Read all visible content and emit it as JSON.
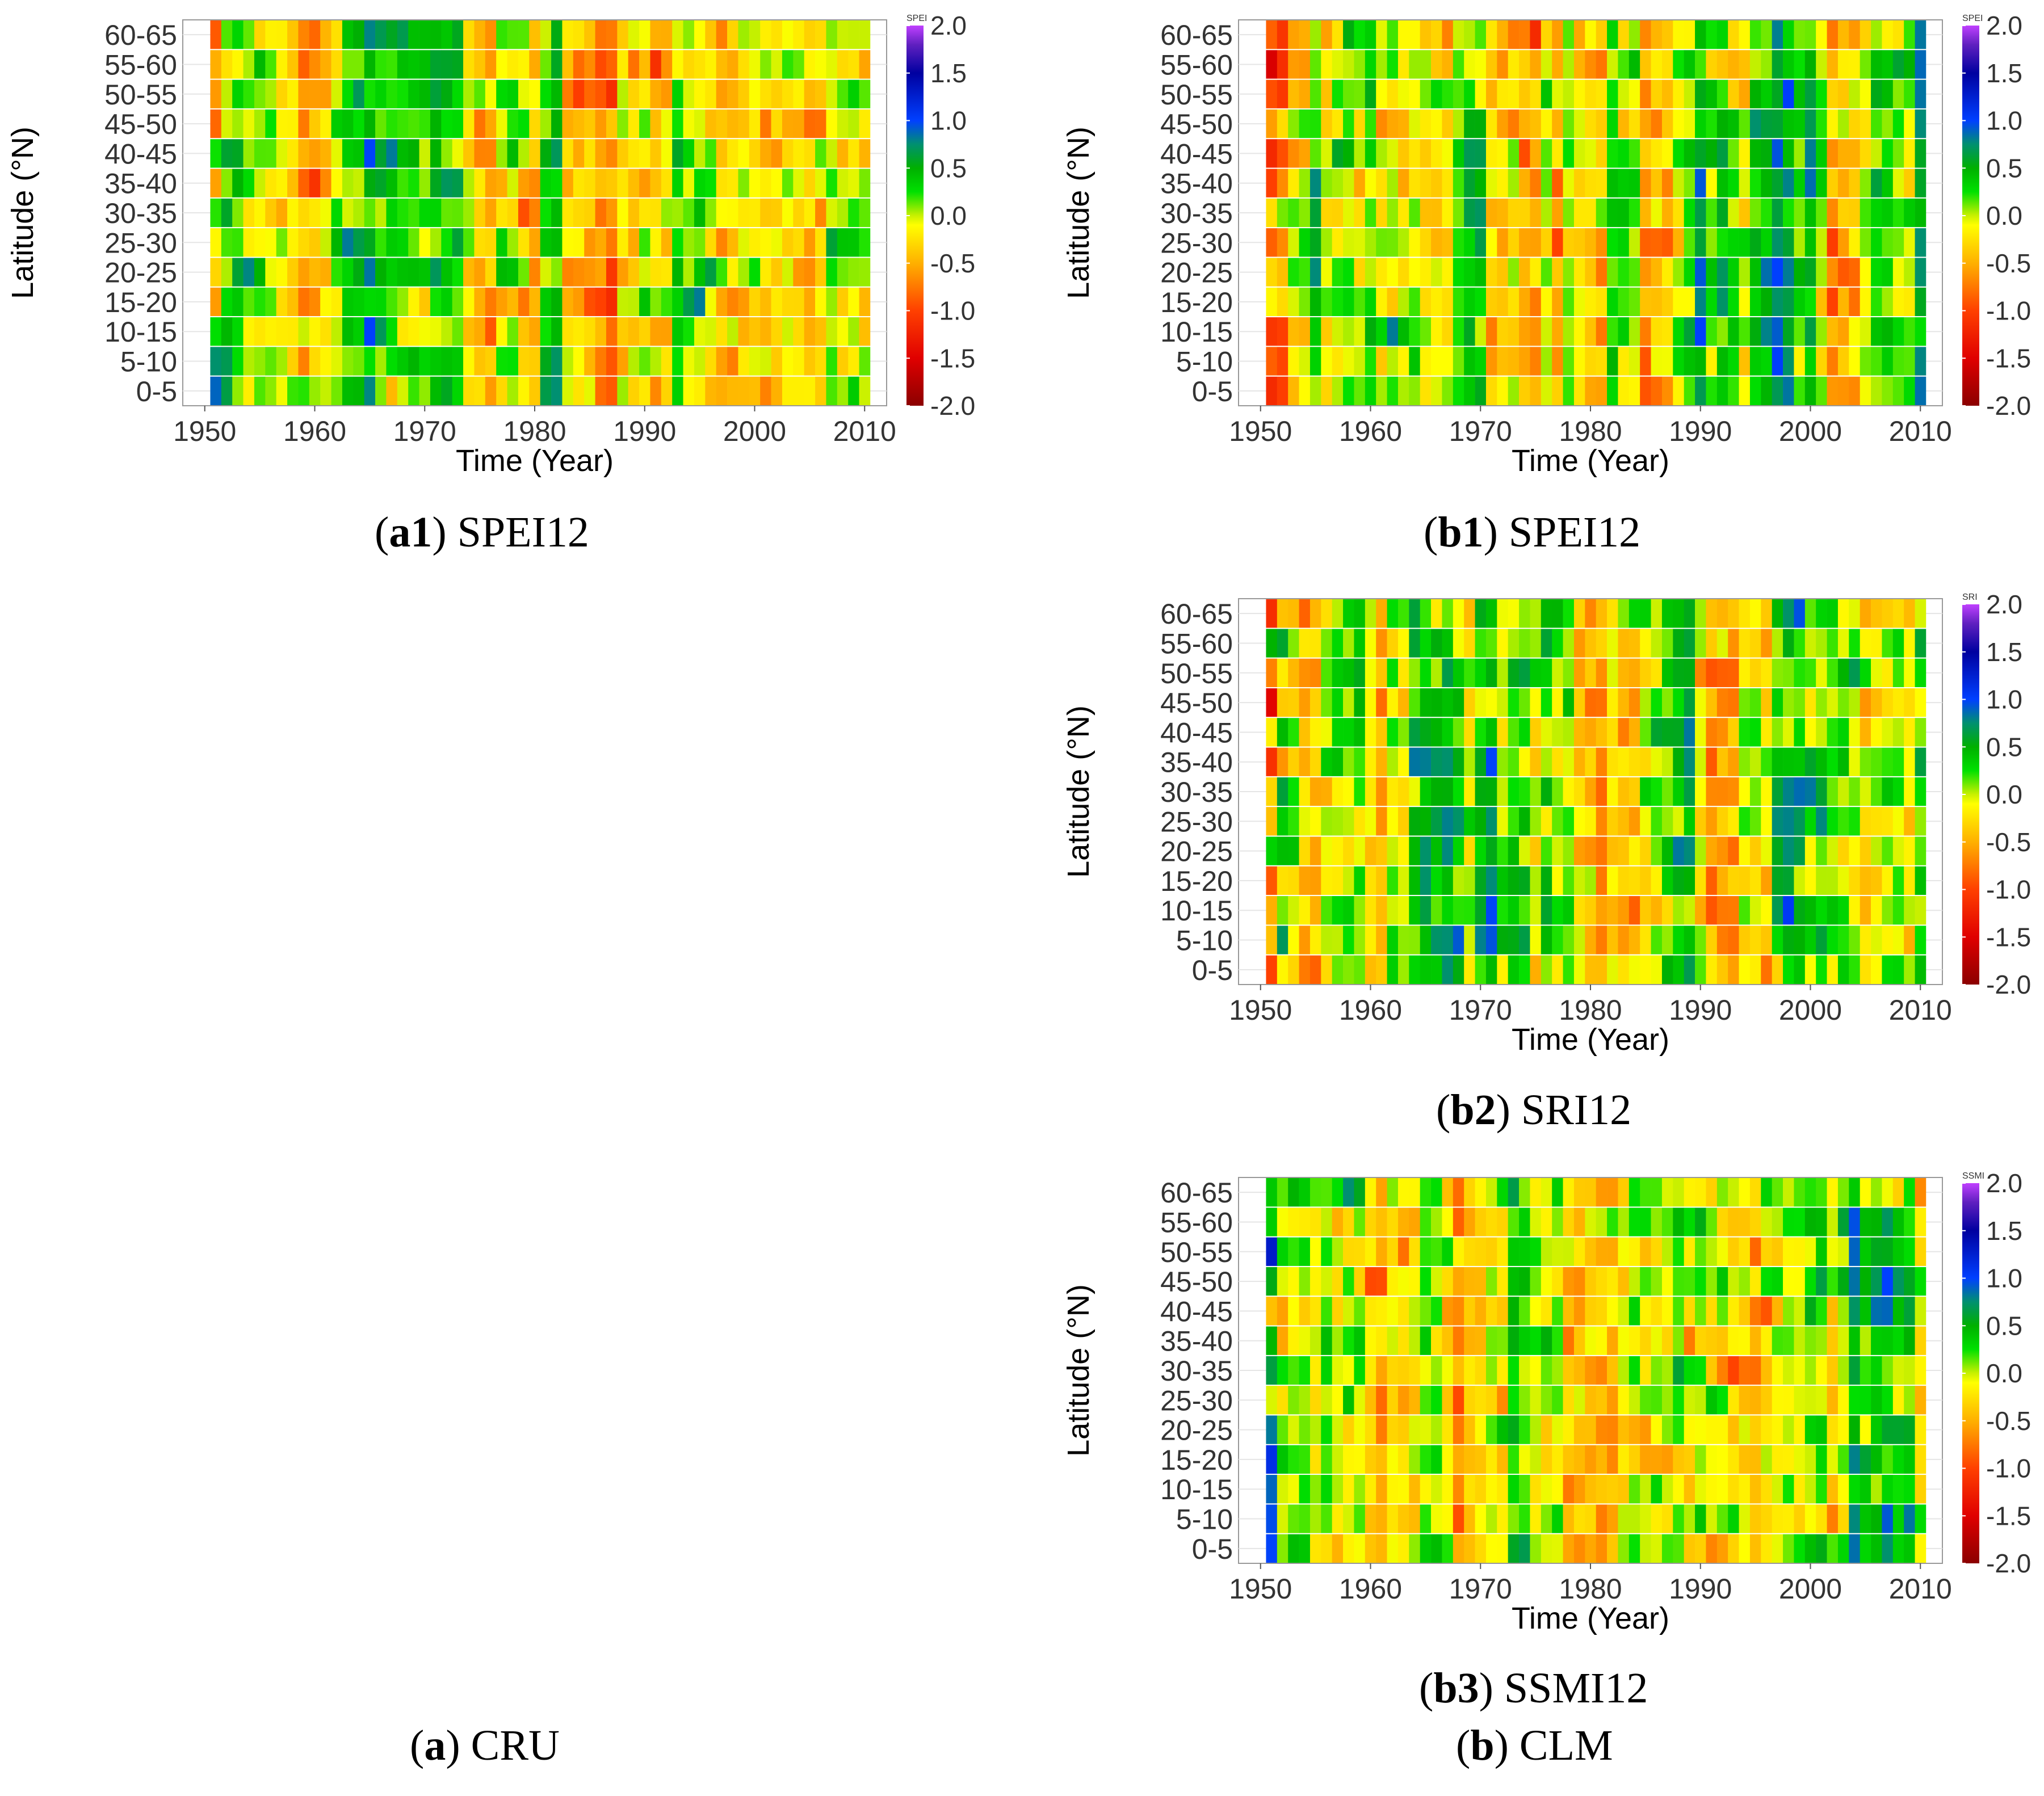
{
  "panels": [
    {
      "key": "a1",
      "title": "(a1) SPEI12",
      "caption": {
        "open": "(",
        "bold": "a1",
        "rest": ") SPEI12"
      },
      "legend_title": "SPEI"
    },
    {
      "key": "b1",
      "title": "(b1) SPEI12",
      "caption": {
        "open": "(",
        "bold": "b1",
        "rest": ") SPEI12"
      },
      "legend_title": "SPEI"
    },
    {
      "key": "b2",
      "title": "(b2) SRI12",
      "caption": {
        "open": "(",
        "bold": "b2",
        "rest": ") SRI12"
      },
      "legend_title": "SRI"
    },
    {
      "key": "b3",
      "title": "(b3) SSMI12",
      "caption": {
        "open": "(",
        "bold": "b3",
        "rest": ") SSMI12"
      },
      "legend_title": "SSMI"
    }
  ],
  "column_captions": {
    "a": {
      "open": "(",
      "bold": "a",
      "rest": ") CRU"
    },
    "b": {
      "open": "(",
      "bold": "b",
      "rest": ") CLM"
    }
  },
  "chart_data": {
    "type": "heatmap",
    "xlabel": "Time (Year)",
    "ylabel": "Latitude (°N)",
    "x_ticks": [
      1950,
      1960,
      1970,
      1980,
      1990,
      2000,
      2010
    ],
    "xlim": [
      1948,
      2012
    ],
    "year_range": [
      1951,
      2010
    ],
    "y_categories": [
      "0-5",
      "5-10",
      "10-15",
      "15-20",
      "20-25",
      "25-30",
      "30-35",
      "35-40",
      "40-45",
      "45-50",
      "50-55",
      "55-60",
      "60-65"
    ],
    "value_range": [
      -2.0,
      2.0
    ],
    "colorbar_ticks": [
      "2.0",
      "1.5",
      "1.0",
      "0.5",
      "0.0",
      "-0.5",
      "-1.0",
      "-1.5",
      "-2.0"
    ],
    "colorscale": [
      {
        "v": -2.0,
        "color": "#8b0000"
      },
      {
        "v": -1.5,
        "color": "#e00000"
      },
      {
        "v": -1.0,
        "color": "#ff4000"
      },
      {
        "v": -0.5,
        "color": "#ffb000"
      },
      {
        "v": -0.1,
        "color": "#ffff00"
      },
      {
        "v": 0.0,
        "color": "#c8f000"
      },
      {
        "v": 0.25,
        "color": "#00e000"
      },
      {
        "v": 0.5,
        "color": "#00b000"
      },
      {
        "v": 0.75,
        "color": "#009070"
      },
      {
        "v": 1.0,
        "color": "#0040ff"
      },
      {
        "v": 1.5,
        "color": "#0000a0"
      },
      {
        "v": 1.8,
        "color": "#6020c0"
      },
      {
        "v": 2.0,
        "color": "#c040ff"
      }
    ],
    "series": [
      {
        "name": "CRU SPEI12",
        "seed": 11,
        "note": "Cell values approximated from the image; not individually legible."
      },
      {
        "name": "CLM SPEI12",
        "seed": 23,
        "note": "Cell values approximated from the image; not individually legible."
      },
      {
        "name": "CLM SRI12",
        "seed": 37,
        "note": "Cell values approximated from the image; not individually legible."
      },
      {
        "name": "CLM SSMI12",
        "seed": 53,
        "note": "Cell values approximated from the image; not individually legible."
      }
    ]
  }
}
